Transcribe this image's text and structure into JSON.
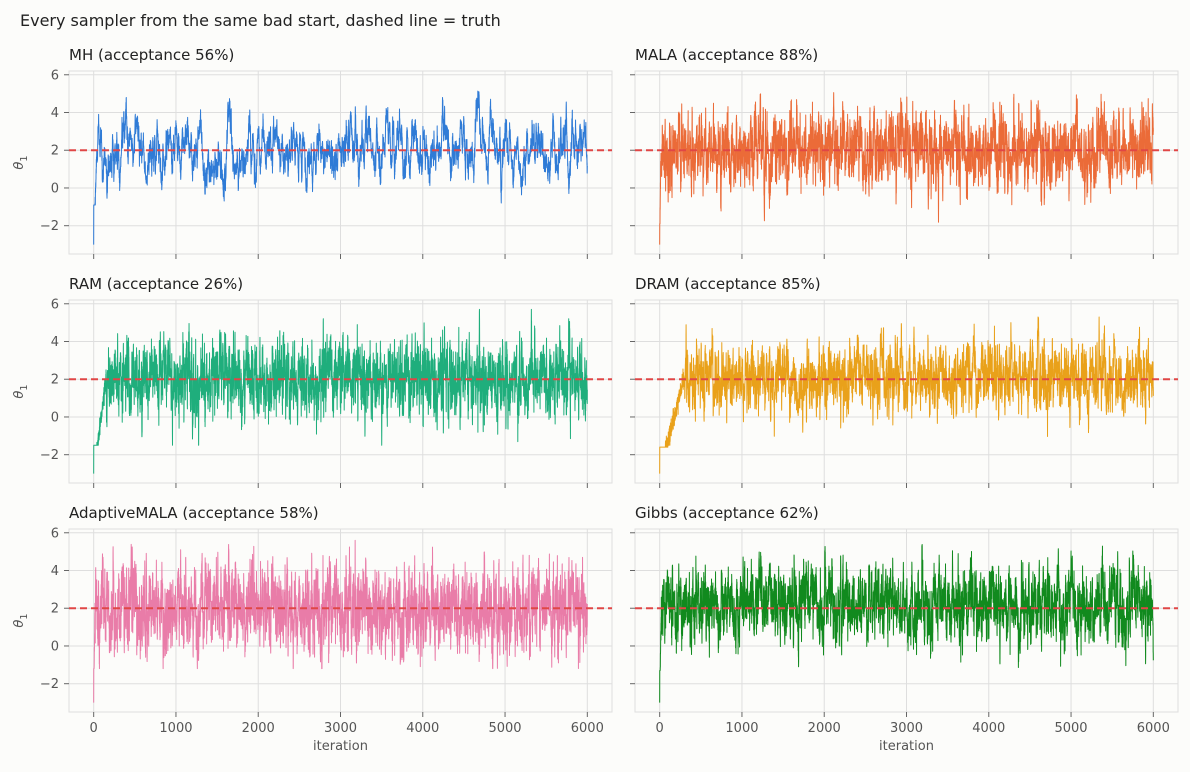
{
  "figure": {
    "suptitle": "Every sampler from the same bad start, dashed line = truth"
  },
  "chart_data": {
    "type": "line",
    "layout": "3x2 grid, shared x and y axes",
    "xlabel": "iteration",
    "ylabel": "θ",
    "ylabel_subscript": "1",
    "xlim": [
      -300,
      6300
    ],
    "ylim": [
      -3.5,
      6.2
    ],
    "xticks": [
      0,
      1000,
      2000,
      3000,
      4000,
      5000,
      6000
    ],
    "yticks": [
      -2,
      0,
      2,
      4,
      6
    ],
    "grid": true,
    "truth": 2,
    "start_value": -3,
    "n_iterations": 6000,
    "panels": [
      {
        "name": "MH",
        "title": "MH   (acceptance 56%)",
        "acceptance": "56%",
        "color": "#2f7bd6",
        "burn_in": 40,
        "mean": 2.1,
        "stdev": 0.9,
        "autocorr": 0.95,
        "min": -0.9,
        "max": 5.6
      },
      {
        "name": "MALA",
        "title": "MALA   (acceptance 88%)",
        "acceptance": "88%",
        "color": "#eb6b38",
        "burn_in": 15,
        "mean": 2.0,
        "stdev": 1.0,
        "autocorr": 0.8,
        "min": -1.9,
        "max": 5.5
      },
      {
        "name": "RAM",
        "title": "RAM   (acceptance 26%)",
        "acceptance": "26%",
        "color": "#1fae7c",
        "burn_in": 150,
        "mean": 2.0,
        "stdev": 1.0,
        "autocorr": 0.75,
        "min": -1.5,
        "max": 5.7
      },
      {
        "name": "DRAM",
        "title": "DRAM   (acceptance 85%)",
        "acceptance": "85%",
        "color": "#e9a11a",
        "burn_in": 300,
        "mean": 2.1,
        "stdev": 0.9,
        "autocorr": 0.8,
        "min": -1.6,
        "max": 5.3
      },
      {
        "name": "AdaptiveMALA",
        "title": "AdaptiveMALA   (acceptance 58%)",
        "acceptance": "58%",
        "color": "#e97ca8",
        "burn_in": 15,
        "mean": 2.0,
        "stdev": 1.1,
        "autocorr": 0.75,
        "min": -1.2,
        "max": 5.6
      },
      {
        "name": "Gibbs",
        "title": "Gibbs   (acceptance 62%)",
        "acceptance": "62%",
        "color": "#118a1e",
        "burn_in": 20,
        "mean": 2.2,
        "stdev": 1.0,
        "autocorr": 0.8,
        "min": -1.3,
        "max": 5.5
      }
    ]
  }
}
